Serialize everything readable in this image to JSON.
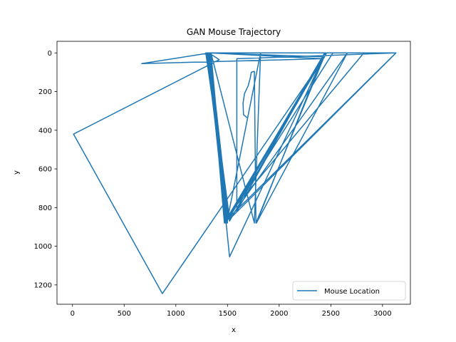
{
  "chart_data": {
    "type": "line",
    "title": "GAN Mouse Trajectory",
    "xlabel": "x",
    "ylabel": "y",
    "xlim": [
      -150,
      3270
    ],
    "ylim": [
      1300,
      -60
    ],
    "y_inverted": true,
    "xticks": [
      0,
      500,
      1000,
      1500,
      2000,
      2500,
      3000
    ],
    "yticks": [
      0,
      200,
      400,
      600,
      800,
      1000,
      1200
    ],
    "grid": false,
    "legend_position": "lower right",
    "series": [
      {
        "name": "Mouse Location",
        "color": "#1f77b4",
        "points": [
          [
            1690,
            335
          ],
          [
            1655,
            320
          ],
          [
            1650,
            260
          ],
          [
            1665,
            210
          ],
          [
            1700,
            170
          ],
          [
            1720,
            130
          ],
          [
            1730,
            100
          ],
          [
            1760,
            95
          ],
          [
            1775,
            880
          ],
          [
            2450,
            0
          ],
          [
            1520,
            870
          ],
          [
            1310,
            0
          ],
          [
            1500,
            880
          ],
          [
            1320,
            0
          ],
          [
            1490,
            860
          ],
          [
            2450,
            0
          ],
          [
            1510,
            860
          ],
          [
            1330,
            0
          ],
          [
            1480,
            870
          ],
          [
            3130,
            0
          ],
          [
            1330,
            0
          ],
          [
            1470,
            880
          ],
          [
            2460,
            0
          ],
          [
            1300,
            0
          ],
          [
            1500,
            860
          ],
          [
            2440,
            0
          ],
          [
            1590,
            820
          ],
          [
            1590,
            30
          ],
          [
            3130,
            0
          ],
          [
            1320,
            0
          ],
          [
            1520,
            1055
          ],
          [
            2430,
            20
          ],
          [
            1300,
            0
          ],
          [
            1490,
            850
          ],
          [
            2820,
            0
          ],
          [
            1320,
            0
          ],
          [
            1480,
            880
          ],
          [
            2520,
            0
          ],
          [
            1310,
            0
          ],
          [
            1520,
            860
          ],
          [
            2660,
            0
          ],
          [
            1780,
            880
          ],
          [
            2440,
            0
          ],
          [
            1330,
            0
          ],
          [
            1500,
            860
          ],
          [
            1820,
            0
          ],
          [
            1760,
            880
          ],
          [
            1340,
            0
          ],
          [
            1490,
            880
          ],
          [
            1330,
            0
          ],
          [
            670,
            55
          ],
          [
            2420,
            30
          ],
          [
            1330,
            0
          ],
          [
            1480,
            870
          ],
          [
            1330,
            0
          ],
          [
            1290,
            0
          ],
          [
            1520,
            860
          ],
          [
            3130,
            0
          ],
          [
            1320,
            0
          ],
          [
            1500,
            870
          ],
          [
            1320,
            0
          ],
          [
            1420,
            35
          ],
          [
            10,
            420
          ],
          [
            870,
            1245
          ],
          [
            2440,
            20
          ],
          [
            1320,
            0
          ],
          [
            1480,
            870
          ],
          [
            1310,
            0
          ]
        ]
      }
    ]
  }
}
